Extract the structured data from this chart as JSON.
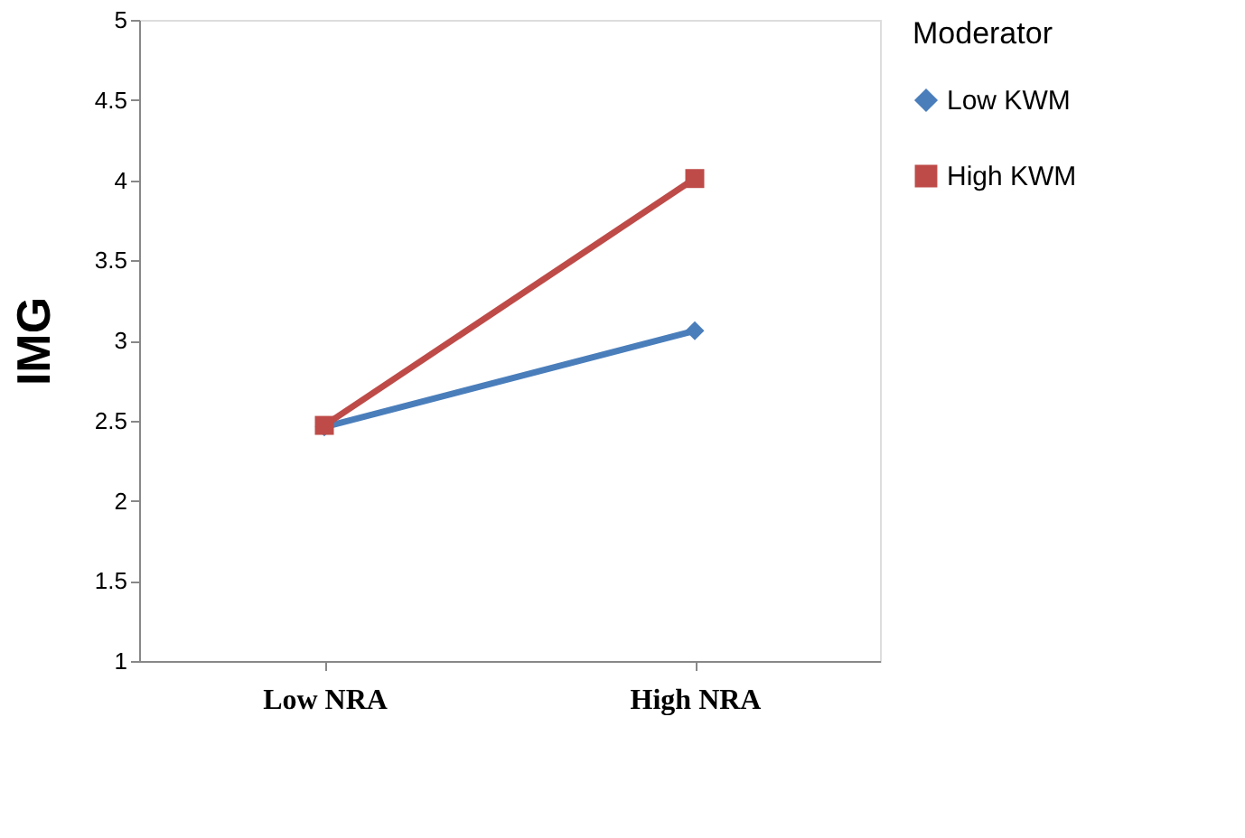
{
  "chart_data": {
    "type": "line",
    "categories": [
      "Low NRA",
      "High NRA"
    ],
    "ylabel": "IMG",
    "legend_title": "Moderator",
    "legend": "right",
    "ylim": [
      1,
      5
    ],
    "yticks": [
      1,
      1.5,
      2,
      2.5,
      3,
      3.5,
      4,
      4.5,
      5
    ],
    "grid": false,
    "series": [
      {
        "name": "Low KWM",
        "color": "#4a7ebb",
        "marker": "diamond",
        "values": [
          2.46,
          3.06
        ]
      },
      {
        "name": "High KWM",
        "color": "#be4b48",
        "marker": "square",
        "values": [
          2.47,
          4.01
        ]
      }
    ]
  }
}
